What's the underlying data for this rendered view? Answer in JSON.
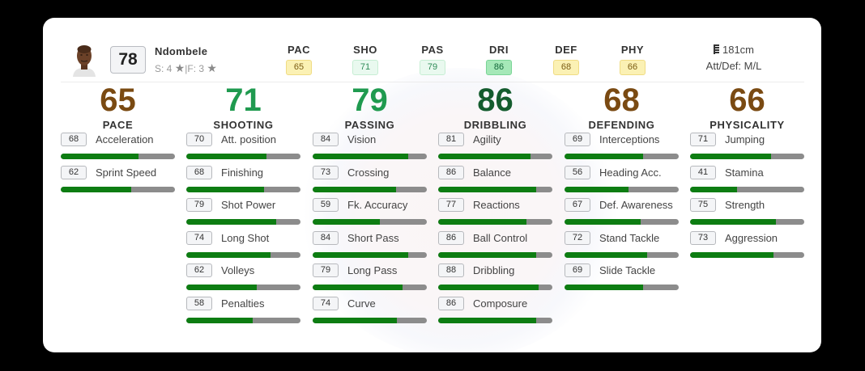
{
  "player": {
    "name": "Ndombele",
    "overall": "78",
    "skills_text": "S: 4",
    "weakfoot_text": "F: 3",
    "separator": "|",
    "star_icon": "★",
    "height": "181cm",
    "work_rates": "Att/Def: M/L"
  },
  "header_stats": [
    {
      "label": "PAC",
      "value": "65",
      "style": "yellow"
    },
    {
      "label": "SHO",
      "value": "71",
      "style": "lgreen"
    },
    {
      "label": "PAS",
      "value": "79",
      "style": "lgreen"
    },
    {
      "label": "DRI",
      "value": "86",
      "style": "green"
    },
    {
      "label": "DEF",
      "value": "68",
      "style": "yellow"
    },
    {
      "label": "PHY",
      "value": "66",
      "style": "yellow"
    }
  ],
  "colors": {
    "brown": "#7a4a12",
    "green": "#1f9a4f",
    "dark_green": "#145c2e",
    "bar_fill": "#0d7d12",
    "bar_track": "#8c8c8c"
  },
  "categories": [
    {
      "value": "65",
      "name": "PACE",
      "color": "brown",
      "attrs": [
        {
          "v": 68,
          "name": "Acceleration"
        },
        {
          "v": 62,
          "name": "Sprint Speed"
        }
      ]
    },
    {
      "value": "71",
      "name": "SHOOTING",
      "color": "green",
      "attrs": [
        {
          "v": 70,
          "name": "Att. position"
        },
        {
          "v": 68,
          "name": "Finishing"
        },
        {
          "v": 79,
          "name": "Shot Power"
        },
        {
          "v": 74,
          "name": "Long Shot"
        },
        {
          "v": 62,
          "name": "Volleys"
        },
        {
          "v": 58,
          "name": "Penalties"
        }
      ]
    },
    {
      "value": "79",
      "name": "PASSING",
      "color": "green",
      "attrs": [
        {
          "v": 84,
          "name": "Vision"
        },
        {
          "v": 73,
          "name": "Crossing"
        },
        {
          "v": 59,
          "name": "Fk. Accuracy"
        },
        {
          "v": 84,
          "name": "Short Pass"
        },
        {
          "v": 79,
          "name": "Long Pass"
        },
        {
          "v": 74,
          "name": "Curve"
        }
      ]
    },
    {
      "value": "86",
      "name": "DRIBBLING",
      "color": "dgreen",
      "attrs": [
        {
          "v": 81,
          "name": "Agility"
        },
        {
          "v": 86,
          "name": "Balance"
        },
        {
          "v": 77,
          "name": "Reactions"
        },
        {
          "v": 86,
          "name": "Ball Control"
        },
        {
          "v": 88,
          "name": "Dribbling"
        },
        {
          "v": 86,
          "name": "Composure"
        }
      ]
    },
    {
      "value": "68",
      "name": "DEFENDING",
      "color": "brown",
      "attrs": [
        {
          "v": 69,
          "name": "Interceptions"
        },
        {
          "v": 56,
          "name": "Heading Acc."
        },
        {
          "v": 67,
          "name": "Def. Awareness"
        },
        {
          "v": 72,
          "name": "Stand Tackle"
        },
        {
          "v": 69,
          "name": "Slide Tackle"
        }
      ]
    },
    {
      "value": "66",
      "name": "PHYSICALITY",
      "color": "brown",
      "attrs": [
        {
          "v": 71,
          "name": "Jumping"
        },
        {
          "v": 41,
          "name": "Stamina"
        },
        {
          "v": 75,
          "name": "Strength"
        },
        {
          "v": 73,
          "name": "Aggression"
        }
      ]
    }
  ]
}
